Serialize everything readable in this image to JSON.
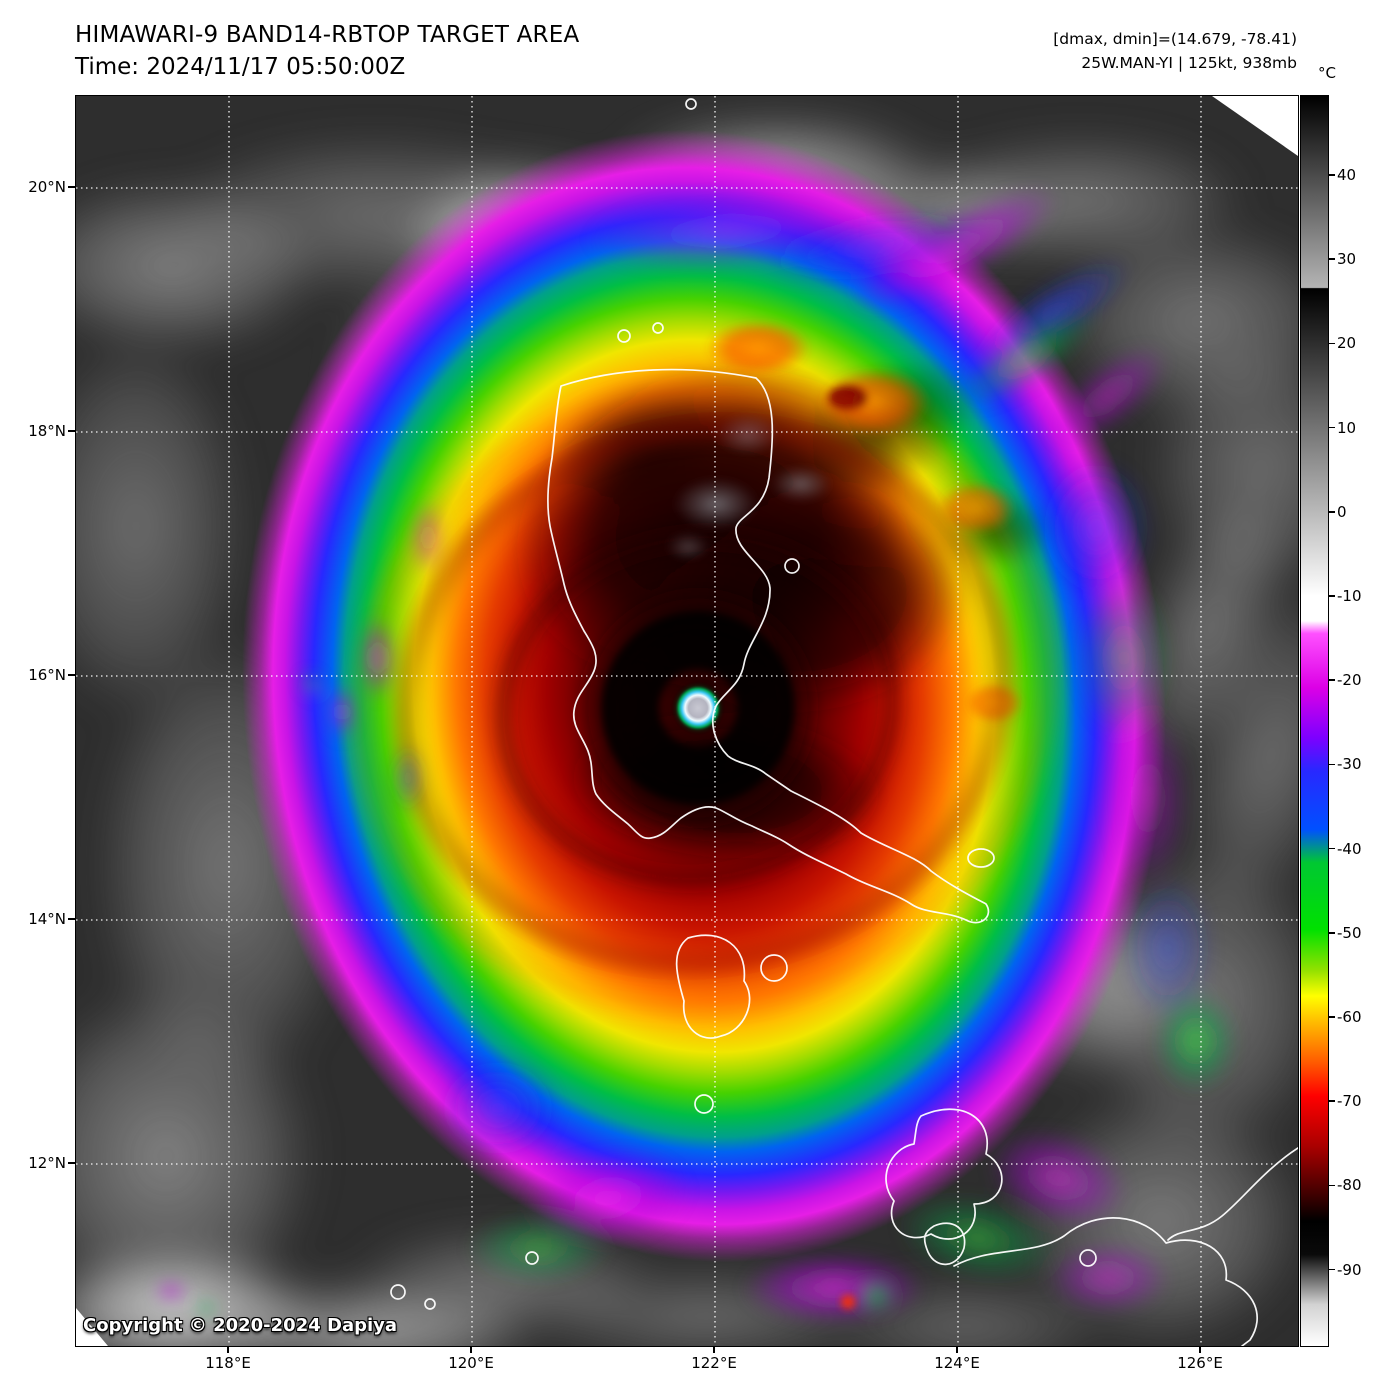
{
  "header": {
    "title": "HIMAWARI-9 BAND14-RBTOP TARGET AREA",
    "time": "Time: 2024/11/17 05:50:00Z"
  },
  "annotation": {
    "range": "[dmax, dmin]=(14.679, -78.41)",
    "storm": "25W.MAN-YI | 125kt, 938mb"
  },
  "storm": {
    "id": "25W",
    "name": "MAN-YI",
    "intensity": "125kt",
    "pressure": "938mb"
  },
  "axes": {
    "lat": [
      {
        "label": "20°N",
        "value": 20
      },
      {
        "label": "18°N",
        "value": 18
      },
      {
        "label": "16°N",
        "value": 16
      },
      {
        "label": "14°N",
        "value": 14
      },
      {
        "label": "12°N",
        "value": 12
      }
    ],
    "lon": [
      {
        "label": "118°E",
        "value": 118
      },
      {
        "label": "120°E",
        "value": 120
      },
      {
        "label": "122°E",
        "value": 122
      },
      {
        "label": "124°E",
        "value": 124
      },
      {
        "label": "126°E",
        "value": 126
      }
    ]
  },
  "colorbar": {
    "unit": "°C",
    "ticks": [
      40,
      30,
      20,
      10,
      0,
      -10,
      -20,
      -30,
      -40,
      -50,
      -60,
      -70,
      -80,
      -90
    ],
    "stops": [
      {
        "t": 50,
        "c": "#000000"
      },
      {
        "t": 27,
        "c": "#b4b4b4"
      },
      {
        "t": 26.9,
        "c": "#000000"
      },
      {
        "t": -10,
        "c": "#ffffff"
      },
      {
        "t": -13,
        "c": "#ffffff"
      },
      {
        "t": -14.5,
        "c": "#ff50ff"
      },
      {
        "t": -21,
        "c": "#dc00e6"
      },
      {
        "t": -27,
        "c": "#7d00ff"
      },
      {
        "t": -31,
        "c": "#2828ff"
      },
      {
        "t": -38,
        "c": "#0050ff"
      },
      {
        "t": -42,
        "c": "#00c832"
      },
      {
        "t": -50,
        "c": "#00e100"
      },
      {
        "t": -55,
        "c": "#96e100"
      },
      {
        "t": -58,
        "c": "#ffff00"
      },
      {
        "t": -61,
        "c": "#ffbe00"
      },
      {
        "t": -66,
        "c": "#ff5a00"
      },
      {
        "t": -70,
        "c": "#ff0000"
      },
      {
        "t": -76,
        "c": "#aa0000"
      },
      {
        "t": -82,
        "c": "#3c0000"
      },
      {
        "t": -85,
        "c": "#000000"
      },
      {
        "t": -89,
        "c": "#0a0a0a"
      },
      {
        "t": -95,
        "c": "#d2d2d2"
      },
      {
        "t": -100,
        "c": "#ffffff"
      }
    ]
  },
  "map": {
    "copyright": "Copyright © 2020-2024 Dapiya"
  }
}
